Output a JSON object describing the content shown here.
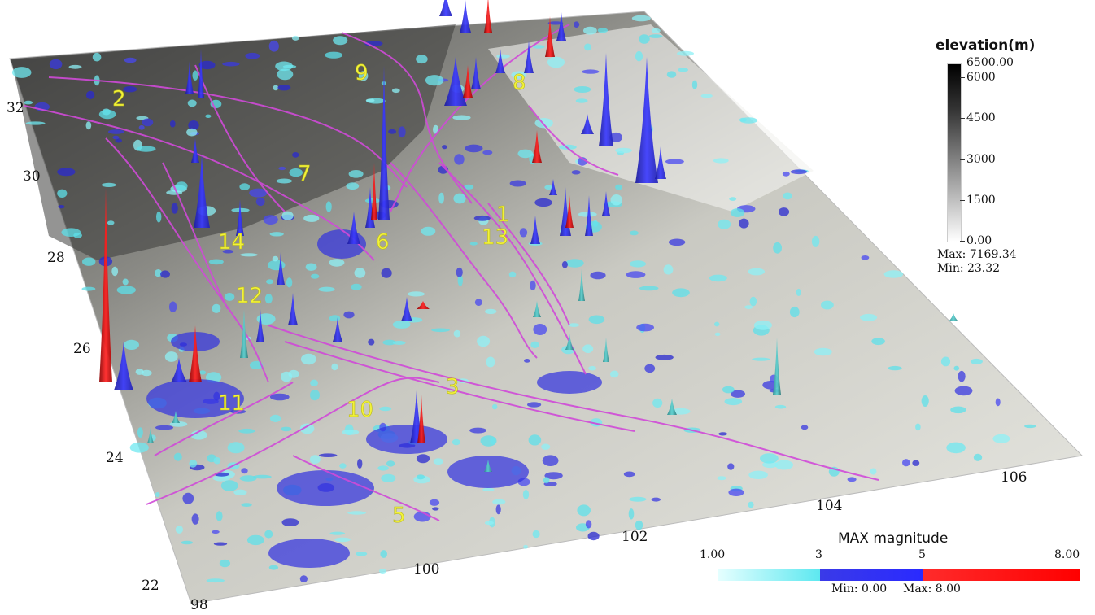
{
  "map": {
    "latitude_labels": [
      "32",
      "30",
      "28",
      "26",
      "24",
      "22"
    ],
    "longitude_labels": [
      "98",
      "100",
      "102",
      "104",
      "106"
    ],
    "fault_labels": [
      "1",
      "2",
      "3",
      "5",
      "6",
      "7",
      "8",
      "9",
      "10",
      "11",
      "12",
      "13",
      "14"
    ]
  },
  "elevation_legend": {
    "title": "elevation(m)",
    "ticks": [
      "6500.00",
      "6000",
      "4500",
      "3000",
      "1500",
      "0.00"
    ],
    "max_text": "Max: 7169.34",
    "min_text": "Min: 23.32"
  },
  "magnitude_legend": {
    "title": "MAX  magnitude",
    "ticks": [
      "1.00",
      "3",
      "5",
      "8.00"
    ],
    "min_text": "Min: 0.00",
    "max_text": "Max: 8.00",
    "colors": [
      "#e6ffff",
      "#5de8f0",
      "#3a3ae8",
      "#2a2aff",
      "#ff2b2b",
      "#ff0000"
    ]
  }
}
